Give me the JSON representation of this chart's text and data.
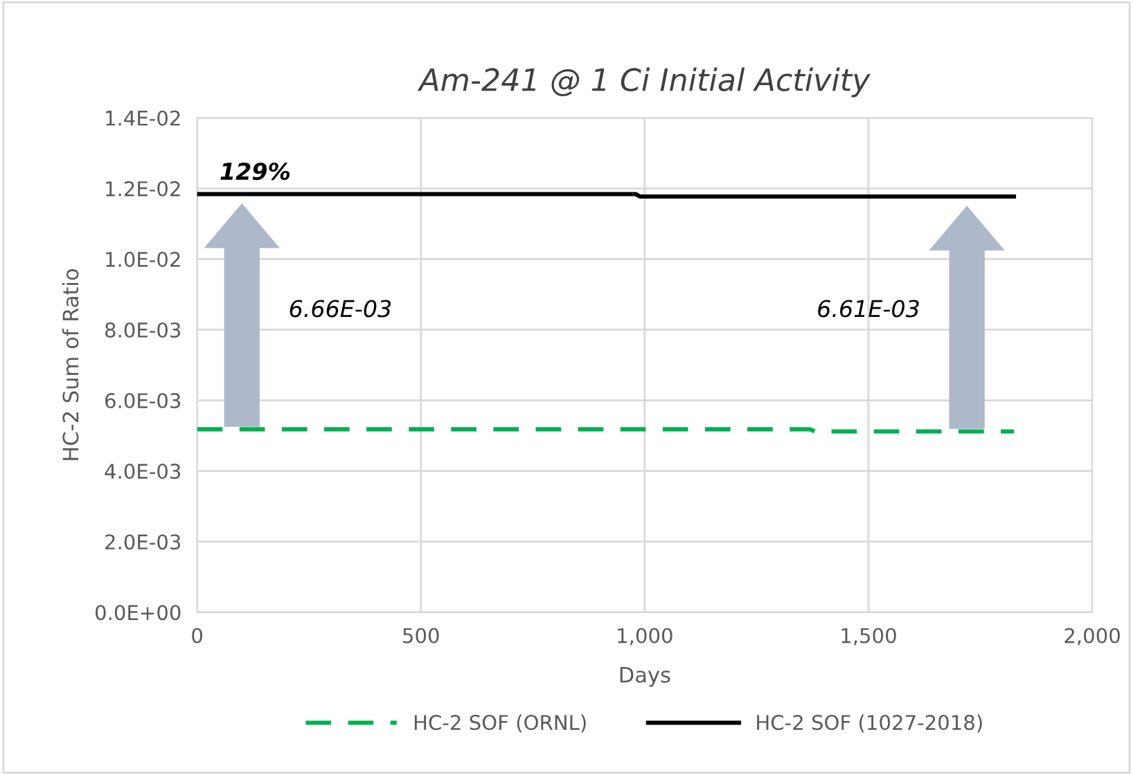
{
  "chart_data": {
    "type": "line",
    "title": "Am-241 @ 1 Ci Initial Activity",
    "xlabel": "Days",
    "ylabel": "HC-2 Sum of Ratio",
    "series": [
      {
        "name": "HC-2 SOF (ORNL)",
        "color": "#00b050",
        "line_style": "dashed",
        "x": [
          0,
          1370,
          1380,
          1825
        ],
        "values": [
          0.00518,
          0.00518,
          0.00512,
          0.00512
        ]
      },
      {
        "name": "HC-2 SOF (1027-2018)",
        "color": "#000000",
        "line_style": "solid",
        "x": [
          0,
          980,
          990,
          1825
        ],
        "values": [
          0.01184,
          0.01184,
          0.01177,
          0.01177
        ]
      }
    ],
    "xlim": [
      0,
      2000
    ],
    "xticks": [
      0,
      {
        "value": 500,
        "label": "500"
      },
      {
        "value": 1000,
        "label": "1,000"
      },
      {
        "value": 1500,
        "label": "1,500"
      },
      {
        "value": 2000,
        "label": "2,000"
      }
    ],
    "ylim": [
      0,
      0.014
    ],
    "yticks": [
      {
        "value": 0,
        "label": "0.0E+00"
      },
      {
        "value": 0.002,
        "label": "2.0E-03"
      },
      {
        "value": 0.004,
        "label": "4.0E-03"
      },
      {
        "value": 0.006,
        "label": "6.0E-03"
      },
      {
        "value": 0.008,
        "label": "8.0E-03"
      },
      {
        "value": 0.01,
        "label": "1.0E-02"
      },
      {
        "value": 0.012,
        "label": "1.2E-02"
      },
      {
        "value": 0.014,
        "label": "1.4E-02"
      }
    ],
    "annotations": [
      {
        "text": "129%",
        "x": 50,
        "y": 0.01184
      },
      "6.66E-03",
      "6.61E-03"
    ],
    "grid": true,
    "legend": "bottom",
    "marker": "none"
  }
}
